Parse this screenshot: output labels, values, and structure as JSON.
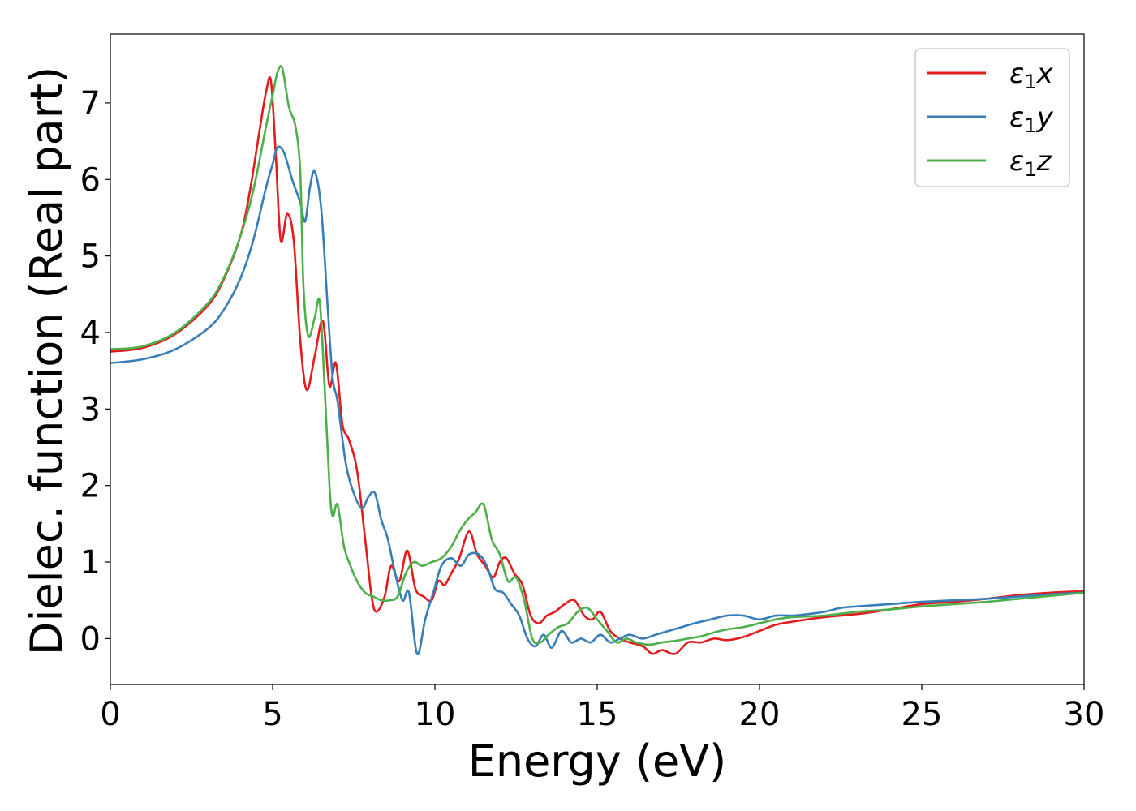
{
  "chart_data": {
    "type": "line",
    "xlabel": "Energy (eV)",
    "ylabel": "Dielec. function (Real part)",
    "xlim": [
      0,
      30
    ],
    "ylim": [
      -0.6,
      7.9
    ],
    "xticks": [
      0,
      5,
      10,
      15,
      20,
      25,
      30
    ],
    "xtick_labels": [
      "0",
      "5",
      "10",
      "15",
      "20",
      "25",
      "30"
    ],
    "yticks": [
      0,
      1,
      2,
      3,
      4,
      5,
      6,
      7
    ],
    "ytick_labels": [
      "0",
      "1",
      "2",
      "3",
      "4",
      "5",
      "6",
      "7"
    ],
    "grid": false,
    "legend_position": "top-right",
    "series": [
      {
        "name": "ε1x",
        "legend_main": "ε",
        "legend_sub": "1",
        "legend_var": "x",
        "color": "#e41a1c",
        "x": [
          0,
          1,
          2,
          3,
          3.5,
          4,
          4.3,
          4.6,
          4.8,
          4.95,
          5.1,
          5.25,
          5.45,
          5.65,
          5.85,
          6.05,
          6.3,
          6.55,
          6.75,
          6.95,
          7.15,
          7.35,
          7.6,
          7.85,
          8.05,
          8.2,
          8.45,
          8.65,
          8.9,
          9.15,
          9.4,
          9.65,
          9.9,
          10.1,
          10.3,
          10.5,
          10.75,
          11.05,
          11.3,
          11.55,
          11.8,
          12.0,
          12.2,
          12.45,
          12.7,
          12.95,
          13.2,
          13.45,
          13.7,
          14.0,
          14.3,
          14.6,
          14.85,
          15.1,
          15.4,
          15.7,
          16.0,
          16.4,
          16.7,
          17.0,
          17.4,
          17.8,
          18.2,
          18.6,
          19.0,
          19.5,
          20.0,
          20.5,
          21.0,
          22.0,
          23.0,
          24.0,
          25.0,
          26.0,
          27.0,
          28.0,
          29.0,
          30.0
        ],
        "y": [
          3.75,
          3.8,
          3.98,
          4.35,
          4.7,
          5.25,
          5.85,
          6.65,
          7.15,
          7.28,
          6.3,
          5.2,
          5.55,
          5.2,
          3.9,
          3.25,
          3.7,
          4.15,
          3.3,
          3.6,
          2.8,
          2.6,
          2.2,
          1.3,
          0.55,
          0.35,
          0.55,
          0.95,
          0.75,
          1.15,
          0.65,
          0.55,
          0.5,
          0.75,
          0.7,
          0.85,
          1.05,
          1.4,
          1.1,
          0.95,
          0.8,
          1.0,
          1.05,
          0.85,
          0.7,
          0.3,
          0.2,
          0.3,
          0.35,
          0.45,
          0.5,
          0.3,
          0.25,
          0.35,
          0.1,
          0.0,
          -0.05,
          -0.1,
          -0.2,
          -0.15,
          -0.2,
          -0.05,
          -0.05,
          0.0,
          -0.02,
          0.02,
          0.1,
          0.18,
          0.22,
          0.28,
          0.32,
          0.38,
          0.45,
          0.48,
          0.52,
          0.57,
          0.6,
          0.62
        ]
      },
      {
        "name": "ε1y",
        "legend_main": "ε",
        "legend_sub": "1",
        "legend_var": "y",
        "color": "#377eb8",
        "x": [
          0,
          1,
          2,
          3,
          3.5,
          4,
          4.4,
          4.8,
          5.0,
          5.15,
          5.35,
          5.6,
          5.85,
          6.0,
          6.15,
          6.3,
          6.5,
          6.7,
          6.85,
          7.0,
          7.25,
          7.5,
          7.75,
          7.95,
          8.15,
          8.35,
          8.55,
          8.75,
          9.0,
          9.2,
          9.45,
          9.7,
          9.95,
          10.2,
          10.5,
          10.8,
          11.05,
          11.35,
          11.6,
          11.85,
          12.1,
          12.35,
          12.6,
          12.85,
          13.1,
          13.35,
          13.6,
          13.9,
          14.2,
          14.5,
          14.8,
          15.1,
          15.4,
          15.7,
          16.0,
          16.4,
          16.8,
          17.2,
          17.6,
          18.0,
          18.5,
          19.0,
          19.5,
          20.0,
          20.5,
          21.0,
          21.5,
          22.0,
          22.5,
          23.0,
          24.0,
          25.0,
          26.0,
          27.0,
          28.0,
          29.0,
          30.0
        ],
        "y": [
          3.6,
          3.65,
          3.78,
          4.05,
          4.3,
          4.7,
          5.2,
          5.9,
          6.2,
          6.42,
          6.35,
          6.0,
          5.7,
          5.45,
          5.9,
          6.1,
          5.6,
          4.3,
          3.4,
          3.1,
          2.3,
          1.9,
          1.7,
          1.85,
          1.9,
          1.55,
          1.3,
          0.9,
          0.5,
          0.6,
          -0.2,
          0.25,
          0.6,
          0.95,
          1.05,
          0.95,
          1.1,
          1.1,
          0.95,
          0.65,
          0.6,
          0.45,
          0.3,
          0.0,
          -0.1,
          0.05,
          -0.12,
          0.1,
          -0.05,
          0.0,
          -0.05,
          0.05,
          -0.05,
          0.0,
          0.05,
          0.0,
          0.05,
          0.1,
          0.15,
          0.2,
          0.25,
          0.3,
          0.3,
          0.25,
          0.3,
          0.3,
          0.32,
          0.35,
          0.4,
          0.42,
          0.45,
          0.48,
          0.5,
          0.52,
          0.55,
          0.58,
          0.6
        ]
      },
      {
        "name": "ε1z",
        "legend_main": "ε",
        "legend_sub": "1",
        "legend_var": "z",
        "color": "#4daf4a",
        "x": [
          0,
          1,
          2,
          3,
          3.5,
          4,
          4.4,
          4.8,
          5.0,
          5.15,
          5.3,
          5.5,
          5.7,
          5.85,
          5.95,
          6.1,
          6.3,
          6.45,
          6.6,
          6.75,
          6.85,
          7.0,
          7.2,
          7.4,
          7.6,
          7.85,
          8.1,
          8.35,
          8.6,
          8.85,
          9.1,
          9.35,
          9.6,
          9.9,
          10.2,
          10.5,
          10.75,
          11.0,
          11.25,
          11.5,
          11.75,
          12.0,
          12.25,
          12.5,
          12.75,
          13.0,
          13.25,
          13.5,
          13.8,
          14.1,
          14.4,
          14.7,
          15.0,
          15.3,
          15.6,
          15.9,
          16.2,
          16.6,
          17.0,
          17.4,
          17.8,
          18.2,
          18.6,
          19.0,
          19.5,
          20.0,
          20.5,
          21.0,
          22.0,
          23.0,
          24.0,
          25.0,
          26.0,
          27.0,
          28.0,
          29.0,
          30.0
        ],
        "y": [
          3.78,
          3.82,
          4.0,
          4.38,
          4.72,
          5.25,
          5.85,
          6.7,
          7.1,
          7.4,
          7.45,
          6.95,
          6.7,
          6.1,
          4.6,
          3.95,
          4.2,
          4.4,
          3.3,
          2.0,
          1.6,
          1.75,
          1.2,
          0.95,
          0.75,
          0.6,
          0.55,
          0.5,
          0.5,
          0.55,
          0.85,
          1.0,
          0.95,
          1.0,
          1.05,
          1.2,
          1.4,
          1.55,
          1.65,
          1.75,
          1.3,
          1.1,
          0.75,
          0.8,
          0.5,
          0.0,
          -0.05,
          0.05,
          0.15,
          0.2,
          0.35,
          0.4,
          0.25,
          0.1,
          -0.05,
          0.0,
          -0.05,
          -0.08,
          -0.05,
          -0.03,
          0.0,
          0.03,
          0.08,
          0.12,
          0.15,
          0.2,
          0.25,
          0.28,
          0.3,
          0.35,
          0.38,
          0.42,
          0.45,
          0.48,
          0.52,
          0.56,
          0.6
        ]
      }
    ]
  }
}
